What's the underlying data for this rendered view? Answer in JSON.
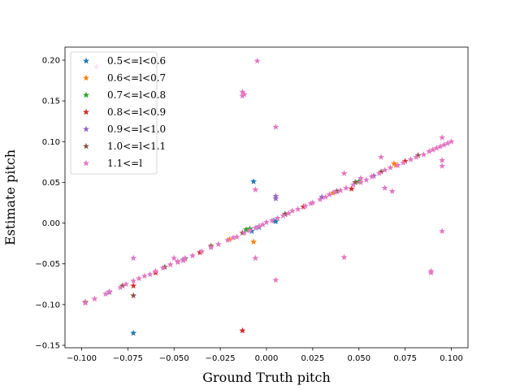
{
  "chart_data": {
    "type": "scatter",
    "title": "",
    "xlabel": "Ground Truth pitch",
    "ylabel": "Estimate pitch",
    "xlim": [
      -0.109,
      0.109
    ],
    "ylim": [
      -0.153,
      0.216
    ],
    "xticks": [
      -0.1,
      -0.075,
      -0.05,
      -0.025,
      0.0,
      0.025,
      0.05,
      0.075,
      0.1
    ],
    "xtick_labels": [
      "−0.100",
      "−0.075",
      "−0.050",
      "−0.025",
      "0.000",
      "0.025",
      "0.050",
      "0.075",
      "0.100"
    ],
    "yticks": [
      -0.15,
      -0.1,
      -0.05,
      0.0,
      0.05,
      0.1,
      0.15,
      0.2
    ],
    "ytick_labels": [
      "−0.15",
      "−0.10",
      "−0.05",
      "0.00",
      "0.05",
      "0.10",
      "0.15",
      "0.20"
    ],
    "grid": false,
    "marker": "star",
    "legend_position": "top-left",
    "series": [
      {
        "name": "0.5<=l<0.6",
        "color": "#1f77b4",
        "points": [
          [
            -0.072,
            -0.135
          ],
          [
            -0.007,
            0.051
          ],
          [
            0.005,
            0.002
          ],
          [
            -0.008,
            -0.01
          ],
          [
            -0.004,
            -0.005
          ],
          [
            0.004,
            0.003
          ]
        ]
      },
      {
        "name": "0.6<=l<0.7",
        "color": "#ff7f0e",
        "points": [
          [
            -0.007,
            -0.023
          ],
          [
            0.069,
            0.073
          ],
          [
            0.036,
            0.037
          ],
          [
            -0.02,
            -0.02
          ],
          [
            0.07,
            0.071
          ]
        ]
      },
      {
        "name": "0.7<=l<0.8",
        "color": "#2ca02c",
        "points": [
          [
            -0.011,
            -0.008
          ],
          [
            -0.009,
            -0.007
          ],
          [
            0.01,
            0.011
          ],
          [
            0.05,
            0.051
          ],
          [
            -0.044,
            -0.044
          ]
        ]
      },
      {
        "name": "0.8<=l<0.9",
        "color": "#d62728",
        "points": [
          [
            -0.013,
            -0.132
          ],
          [
            -0.072,
            -0.077
          ],
          [
            0.046,
            0.042
          ],
          [
            -0.06,
            -0.061
          ],
          [
            0.02,
            0.02
          ],
          [
            0.075,
            0.076
          ],
          [
            -0.036,
            -0.036
          ]
        ]
      },
      {
        "name": "0.9<=l<1.0",
        "color": "#9467bd",
        "points": [
          [
            0.005,
            0.033
          ],
          [
            0.005,
            0.03
          ],
          [
            0.03,
            0.032
          ],
          [
            -0.045,
            -0.045
          ],
          [
            0.058,
            0.058
          ],
          [
            -0.085,
            -0.085
          ]
        ]
      },
      {
        "name": "1.0<=l<1.1",
        "color": "#8c564b",
        "points": [
          [
            -0.072,
            -0.089
          ],
          [
            -0.078,
            -0.077
          ],
          [
            -0.055,
            -0.054
          ],
          [
            -0.03,
            -0.028
          ],
          [
            0.01,
            0.011
          ],
          [
            0.038,
            0.039
          ],
          [
            0.062,
            0.063
          ],
          [
            0.082,
            0.083
          ],
          [
            -0.098,
            -0.097
          ],
          [
            0.048,
            0.05
          ],
          [
            -0.013,
            -0.012
          ]
        ]
      },
      {
        "name": "1.1<=l",
        "color": "#e377c2",
        "points": [
          [
            -0.092,
            0.192
          ],
          [
            -0.005,
            0.199
          ],
          [
            -0.013,
            0.161
          ],
          [
            -0.013,
            0.156
          ],
          [
            -0.012,
            0.158
          ],
          [
            0.005,
            0.118
          ],
          [
            -0.072,
            -0.043
          ],
          [
            -0.006,
            -0.043
          ],
          [
            0.005,
            -0.07
          ],
          [
            0.042,
            -0.042
          ],
          [
            0.095,
            0.105
          ],
          [
            0.095,
            0.077
          ],
          [
            0.095,
            0.07
          ],
          [
            0.095,
            -0.01
          ],
          [
            0.089,
            -0.059
          ],
          [
            0.089,
            -0.061
          ],
          [
            0.062,
            0.081
          ],
          [
            0.064,
            0.043
          ],
          [
            0.068,
            0.039
          ],
          [
            0.042,
            0.061
          ],
          [
            -0.006,
            0.041
          ],
          [
            0.051,
            0.055
          ],
          [
            -0.098,
            -0.098
          ],
          [
            -0.093,
            -0.093
          ],
          [
            -0.087,
            -0.087
          ],
          [
            -0.085,
            -0.084
          ],
          [
            -0.079,
            -0.079
          ],
          [
            -0.076,
            -0.075
          ],
          [
            -0.072,
            -0.071
          ],
          [
            -0.069,
            -0.068
          ],
          [
            -0.066,
            -0.065
          ],
          [
            -0.063,
            -0.063
          ],
          [
            -0.06,
            -0.059
          ],
          [
            -0.056,
            -0.055
          ],
          [
            -0.052,
            -0.051
          ],
          [
            -0.048,
            -0.048
          ],
          [
            -0.045,
            -0.046
          ],
          [
            -0.04,
            -0.04
          ],
          [
            -0.035,
            -0.035
          ],
          [
            -0.03,
            -0.03
          ],
          [
            -0.026,
            -0.026
          ],
          [
            -0.021,
            -0.021
          ],
          [
            -0.018,
            -0.018
          ],
          [
            -0.016,
            -0.017
          ],
          [
            -0.012,
            -0.012
          ],
          [
            -0.009,
            -0.009
          ],
          [
            -0.006,
            -0.006
          ],
          [
            -0.004,
            -0.004
          ],
          [
            -0.002,
            -0.002
          ],
          [
            0.0,
            0.001
          ],
          [
            0.003,
            0.003
          ],
          [
            0.006,
            0.006
          ],
          [
            0.009,
            0.009
          ],
          [
            0.012,
            0.012
          ],
          [
            0.014,
            0.015
          ],
          [
            0.017,
            0.017
          ],
          [
            0.021,
            0.021
          ],
          [
            0.024,
            0.024
          ],
          [
            0.029,
            0.029
          ],
          [
            0.032,
            0.032
          ],
          [
            0.034,
            0.035
          ],
          [
            0.037,
            0.038
          ],
          [
            0.04,
            0.04
          ],
          [
            0.043,
            0.043
          ],
          [
            0.047,
            0.047
          ],
          [
            0.051,
            0.05
          ],
          [
            0.054,
            0.053
          ],
          [
            0.057,
            0.057
          ],
          [
            0.061,
            0.061
          ],
          [
            0.064,
            0.065
          ],
          [
            0.067,
            0.068
          ],
          [
            0.071,
            0.071
          ],
          [
            0.074,
            0.074
          ],
          [
            0.078,
            0.078
          ],
          [
            0.081,
            0.081
          ],
          [
            0.085,
            0.084
          ],
          [
            0.088,
            0.088
          ],
          [
            0.09,
            0.09
          ],
          [
            0.092,
            0.092
          ],
          [
            0.094,
            0.094
          ],
          [
            0.096,
            0.096
          ],
          [
            0.098,
            0.098
          ],
          [
            0.1,
            0.1
          ],
          [
            -0.05,
            -0.043
          ],
          [
            -0.048,
            -0.047
          ],
          [
            0.025,
            0.025
          ],
          [
            -0.044,
            -0.043
          ]
        ]
      }
    ]
  }
}
